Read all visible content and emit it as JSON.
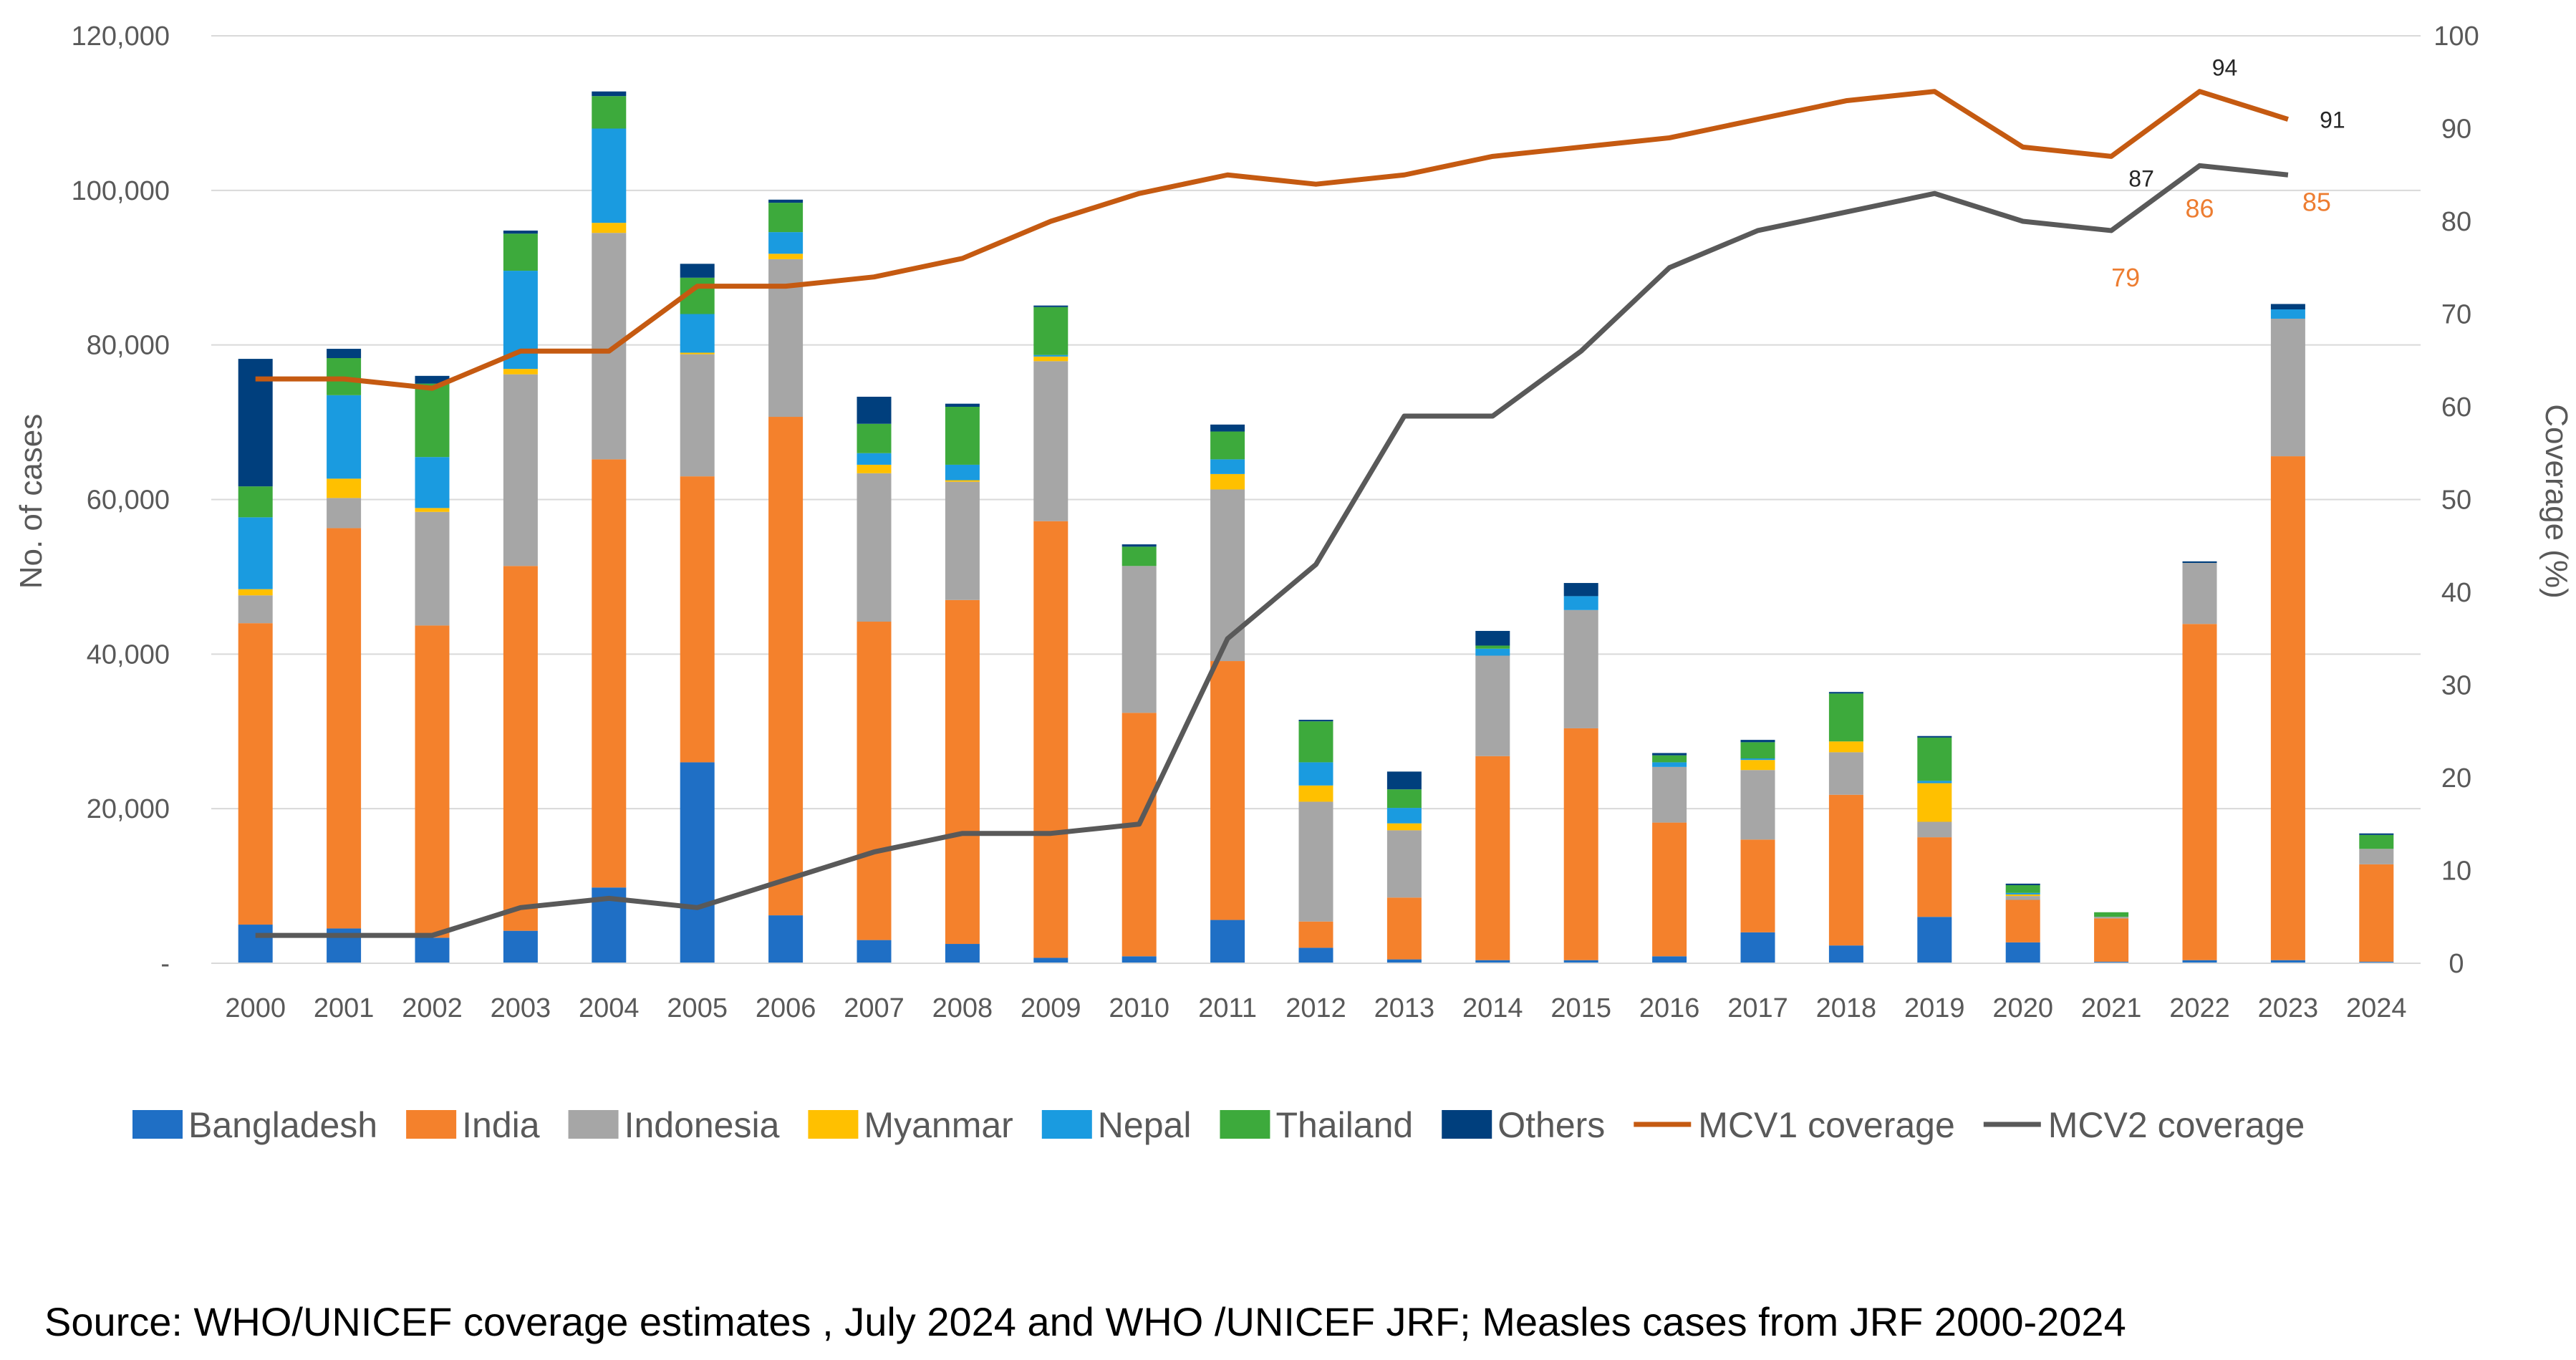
{
  "chart_data": {
    "type": "bar",
    "stacked": true,
    "categories": [
      "2000",
      "2001",
      "2002",
      "2003",
      "2004",
      "2005",
      "2006",
      "2007",
      "2008",
      "2009",
      "2010",
      "2011",
      "2012",
      "2013",
      "2014",
      "2015",
      "2016",
      "2017",
      "2018",
      "2019",
      "2020",
      "2021",
      "2022",
      "2023",
      "2024"
    ],
    "ylabel": "No. of cases",
    "y2label": "Coverage (%)",
    "ylim": [
      0,
      120000
    ],
    "y2lim": [
      0,
      100
    ],
    "yticks": [
      "-",
      "20,000",
      "40,000",
      "60,000",
      "80,000",
      "100,000",
      "120,000"
    ],
    "y2ticks": [
      "0",
      "10",
      "20",
      "30",
      "40",
      "50",
      "60",
      "70",
      "80",
      "90",
      "100"
    ],
    "grid": true,
    "legend_position": "bottom",
    "series": [
      {
        "name": "Bangladesh",
        "color": "#1F6FC5",
        "values": [
          5000,
          4500,
          3300,
          4200,
          9800,
          26000,
          6200,
          3000,
          2500,
          700,
          900,
          5600,
          2000,
          500,
          400,
          400,
          900,
          4000,
          2300,
          6000,
          2700,
          200,
          400,
          400,
          200
        ]
      },
      {
        "name": "India",
        "color": "#F4812C",
        "values": [
          39000,
          51800,
          40400,
          47200,
          55400,
          37000,
          64500,
          41200,
          44500,
          56500,
          31500,
          33500,
          3400,
          8000,
          26400,
          30000,
          17300,
          12000,
          19500,
          10300,
          5500,
          5600,
          43500,
          65200,
          12600
        ]
      },
      {
        "name": "Indonesia",
        "color": "#A6A6A6",
        "values": [
          3600,
          3900,
          14700,
          24800,
          29300,
          15800,
          20400,
          19200,
          15300,
          20700,
          19000,
          22200,
          15500,
          8700,
          13000,
          15300,
          7200,
          9000,
          5500,
          2000,
          500,
          200,
          7900,
          17800,
          2000
        ]
      },
      {
        "name": "Myanmar",
        "color": "#FFC000",
        "values": [
          800,
          2500,
          500,
          700,
          1300,
          200,
          700,
          1100,
          200,
          600,
          0,
          2000,
          2100,
          900,
          0,
          0,
          0,
          1300,
          1400,
          5000,
          200,
          0,
          0,
          0,
          0
        ]
      },
      {
        "name": "Nepal",
        "color": "#1A9BE0",
        "values": [
          9300,
          10800,
          6600,
          12700,
          12200,
          5000,
          2800,
          1500,
          2000,
          200,
          0,
          1900,
          3000,
          2000,
          900,
          1800,
          600,
          200,
          0,
          300,
          200,
          0,
          0,
          1200,
          0
        ]
      },
      {
        "name": "Thailand",
        "color": "#3DAA3C",
        "values": [
          4000,
          4800,
          9500,
          4800,
          4200,
          4700,
          3800,
          3800,
          7500,
          6200,
          2500,
          3600,
          5300,
          2400,
          400,
          0,
          900,
          2100,
          6200,
          5600,
          1000,
          600,
          0,
          0,
          1800
        ]
      },
      {
        "name": "Others",
        "color": "#003F7D",
        "values": [
          16500,
          1200,
          1000,
          400,
          600,
          1800,
          400,
          3500,
          400,
          200,
          300,
          900,
          200,
          2300,
          1900,
          1700,
          300,
          300,
          200,
          200,
          200,
          0,
          200,
          700,
          200
        ]
      }
    ],
    "lines": [
      {
        "name": "MCV1 coverage",
        "color": "#C55A11",
        "axis": "right",
        "values": [
          63,
          63,
          62,
          66,
          66,
          73,
          73,
          74,
          76,
          80,
          83,
          85,
          84,
          85,
          87,
          88,
          89,
          91,
          93,
          94,
          88,
          87,
          94,
          91,
          null
        ]
      },
      {
        "name": "MCV2 coverage",
        "color": "#595959",
        "axis": "right",
        "values": [
          3,
          3,
          3,
          6,
          7,
          6,
          9,
          12,
          14,
          14,
          15,
          35,
          43,
          59,
          59,
          66,
          75,
          79,
          81,
          83,
          80,
          79,
          86,
          85,
          null
        ]
      }
    ],
    "data_labels": [
      {
        "series": "MCV1 coverage",
        "category": "2021",
        "text": "87"
      },
      {
        "series": "MCV1 coverage",
        "category": "2022",
        "text": "94"
      },
      {
        "series": "MCV1 coverage",
        "category": "2023",
        "text": "91"
      },
      {
        "series": "MCV2 coverage",
        "category": "2021",
        "text": "79"
      },
      {
        "series": "MCV2 coverage",
        "category": "2022",
        "text": "86"
      },
      {
        "series": "MCV2 coverage",
        "category": "2023",
        "text": "85"
      }
    ]
  },
  "source_text": "Source: WHO/UNICEF coverage estimates , July 2024 and WHO /UNICEF JRF; Measles cases from JRF 2000-2024"
}
